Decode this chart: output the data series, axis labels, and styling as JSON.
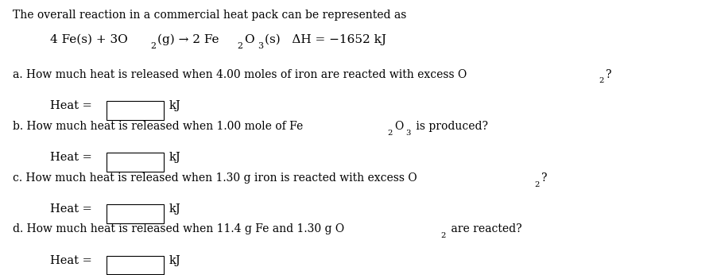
{
  "bg_color": "#ffffff",
  "title_line": "The overall reaction in a commercial heat pack can be represented as",
  "text_color": "#000000",
  "box_color": "#ffffff",
  "box_edge_color": "#000000",
  "font_size_title": 10.0,
  "font_size_reaction": 11.0,
  "font_size_question": 10.0,
  "font_size_heat": 10.5,
  "reaction_parts": [
    [
      "4 Fe(s) + 3O",
      false
    ],
    [
      "2",
      true
    ],
    [
      "(g) → 2 Fe",
      false
    ],
    [
      "2",
      true
    ],
    [
      "O",
      false
    ],
    [
      "3",
      true
    ],
    [
      "(s)   ΔH = −1652 kJ",
      false
    ]
  ],
  "questions": [
    [
      [
        "a. How much heat is released when 4.00 moles of iron are reacted with excess O",
        false
      ],
      [
        "2",
        true
      ],
      [
        "?",
        false
      ]
    ],
    [
      [
        "b. How much heat is released when 1.00 mole of Fe",
        false
      ],
      [
        "2",
        true
      ],
      [
        "O",
        false
      ],
      [
        "3",
        true
      ],
      [
        " is produced?",
        false
      ]
    ],
    [
      [
        "c. How much heat is released when 1.30 g iron is reacted with excess O",
        false
      ],
      [
        "2",
        true
      ],
      [
        "?",
        false
      ]
    ],
    [
      [
        "d. How much heat is released when 11.4 g Fe and 1.30 g O",
        false
      ],
      [
        "2",
        true
      ],
      [
        " are reacted?",
        false
      ]
    ]
  ],
  "heat_label": "Heat =",
  "kj_label": "kJ"
}
